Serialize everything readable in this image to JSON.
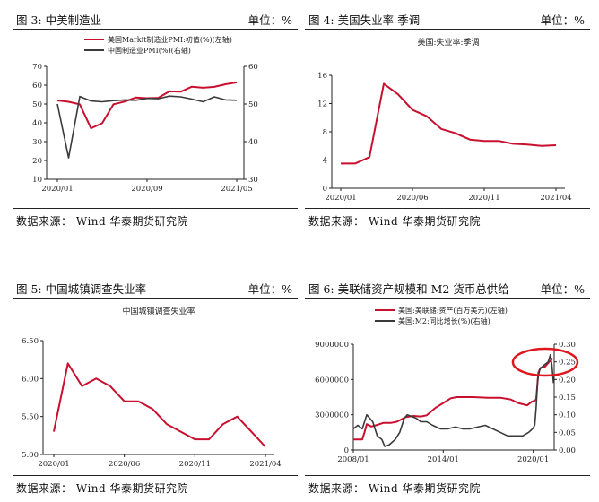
{
  "source_label": "数据来源：  Wind  华泰期货研究院",
  "unit_label": "单位：%",
  "colors": {
    "red": "#c8102e",
    "dark": "#3a3a3a",
    "annotation": "#e0161f"
  },
  "chart_data": [
    {
      "id": "fig3",
      "figure_label": "图 3:  中美制造业",
      "unit": "单位：%",
      "type": "line",
      "title": "",
      "dual_axis": true,
      "y_left": {
        "min": 10,
        "max": 70,
        "ticks": [
          10,
          20,
          30,
          40,
          50,
          60,
          70
        ]
      },
      "y_right": {
        "min": 30,
        "max": 60,
        "ticks": [
          30,
          40,
          50,
          60
        ]
      },
      "x_tick_labels": [
        "2020/01",
        "2020/09",
        "2021/05"
      ],
      "x_tick_index": [
        0,
        8,
        16
      ],
      "legend_position": "top",
      "series": [
        {
          "name": "美国Markit制造业PMI:初值(%)(左轴)",
          "axis": "left",
          "color": "#c8102e",
          "values": [
            51.9,
            51.2,
            49.8,
            37.1,
            39.8,
            49.8,
            51.3,
            53.5,
            53.1,
            53.3,
            56.7,
            56.5,
            59.2,
            58.6,
            59.1,
            60.5,
            61.5
          ]
        },
        {
          "name": "中国制造业PMI(%)(右轴)",
          "axis": "right",
          "color": "#3a3a3a",
          "values": [
            50.0,
            35.7,
            52.0,
            50.8,
            50.6,
            50.9,
            51.1,
            51.0,
            51.5,
            51.4,
            52.1,
            51.9,
            51.3,
            50.6,
            51.9,
            51.1,
            51.0
          ]
        }
      ]
    },
    {
      "id": "fig4",
      "figure_label": "图 4:  美国失业率 季调",
      "unit": "单位：%",
      "type": "line",
      "title": "美国:失业率:季调",
      "y_left": {
        "min": 0,
        "max": 16,
        "ticks": [
          0,
          4,
          8,
          12,
          16
        ]
      },
      "x_tick_labels": [
        "2020/01",
        "2020/06",
        "2020/11",
        "2021/04"
      ],
      "x_tick_index": [
        0,
        5,
        10,
        15
      ],
      "series": [
        {
          "name": "美国:失业率:季调",
          "axis": "left",
          "color": "#c8102e",
          "values": [
            3.5,
            3.5,
            4.4,
            14.8,
            13.3,
            11.1,
            10.2,
            8.4,
            7.8,
            6.9,
            6.7,
            6.7,
            6.3,
            6.2,
            6.0,
            6.1
          ]
        }
      ]
    },
    {
      "id": "fig5",
      "figure_label": "图 5:  中国城镇调查失业率",
      "unit": "单位：%",
      "type": "line",
      "title": "中国城镇调查失业率",
      "y_left": {
        "min": 5.0,
        "max": 6.5,
        "ticks": [
          5.0,
          5.5,
          6.0,
          6.5
        ],
        "tick_labels": [
          "5.00",
          "5.50",
          "6.00",
          "6.50"
        ]
      },
      "x_tick_labels": [
        "2020/01",
        "2020/06",
        "2020/11",
        "2021/04"
      ],
      "x_tick_index": [
        0,
        5,
        10,
        15
      ],
      "series": [
        {
          "name": "中国城镇调查失业率",
          "axis": "left",
          "color": "#c8102e",
          "values": [
            5.3,
            6.2,
            5.9,
            6.0,
            5.9,
            5.7,
            5.7,
            5.6,
            5.4,
            5.3,
            5.2,
            5.2,
            5.4,
            5.5,
            5.3,
            5.1
          ]
        }
      ]
    },
    {
      "id": "fig6",
      "figure_label": "图 6:  美联储资产规模和 M2 货币总供给",
      "unit": "单位：%",
      "type": "line",
      "title": "",
      "dual_axis": true,
      "y_left": {
        "min": 0,
        "max": 9000000,
        "ticks": [
          0,
          3000000,
          6000000,
          9000000
        ],
        "tick_labels": [
          "0",
          "3000000",
          "6000000",
          "9000000"
        ]
      },
      "y_right": {
        "min": 0,
        "max": 0.3,
        "ticks": [
          0,
          0.05,
          0.1,
          0.15,
          0.2,
          0.25,
          0.3
        ],
        "tick_labels": [
          "0.00",
          "0.05",
          "0.10",
          "0.15",
          "0.20",
          "0.25",
          "0.30"
        ]
      },
      "x_range": [
        2008.0,
        2021.4
      ],
      "x_tick_labels": [
        "2008/01",
        "2014/01",
        "2020/01"
      ],
      "x_tick_values": [
        2008.0,
        2014.0,
        2020.0
      ],
      "legend_position": "top",
      "annotation": "red ellipse around 2020-2021 surge",
      "series": [
        {
          "name": "美国:美联储:资产(百万美元)(左轴)",
          "axis": "left",
          "color": "#c8102e",
          "x": [
            2008.0,
            2008.6,
            2008.75,
            2008.9,
            2009.2,
            2009.5,
            2010.0,
            2010.5,
            2010.9,
            2011.5,
            2012.0,
            2012.5,
            2012.9,
            2013.5,
            2014.0,
            2014.5,
            2014.9,
            2015.5,
            2016.0,
            2017.0,
            2017.8,
            2018.5,
            2019.0,
            2019.6,
            2019.9,
            2020.1,
            2020.2,
            2020.35,
            2020.5,
            2020.8,
            2021.0,
            2021.3
          ],
          "y": [
            900000,
            900000,
            1500000,
            2200000,
            2000000,
            2100000,
            2300000,
            2300000,
            2400000,
            2800000,
            2900000,
            2850000,
            2950000,
            3600000,
            4000000,
            4400000,
            4500000,
            4500000,
            4500000,
            4450000,
            4450000,
            4300000,
            4000000,
            3800000,
            4100000,
            4200000,
            4300000,
            6600000,
            7000000,
            7100000,
            7400000,
            7800000
          ]
        },
        {
          "name": "美国:M2:同比增长(%)(右轴)",
          "axis": "right",
          "color": "#3a3a3a",
          "x": [
            2008.0,
            2008.3,
            2008.6,
            2008.9,
            2009.1,
            2009.3,
            2009.6,
            2009.9,
            2010.1,
            2010.4,
            2010.8,
            2011.1,
            2011.4,
            2011.6,
            2011.9,
            2012.2,
            2012.5,
            2012.9,
            2013.3,
            2013.8,
            2014.3,
            2014.8,
            2015.3,
            2015.8,
            2016.3,
            2016.8,
            2017.3,
            2017.8,
            2018.3,
            2018.8,
            2019.3,
            2019.7,
            2019.95,
            2020.1,
            2020.2,
            2020.3,
            2020.45,
            2020.7,
            2021.0,
            2021.15,
            2021.25,
            2021.35
          ],
          "y": [
            0.06,
            0.07,
            0.06,
            0.1,
            0.09,
            0.08,
            0.04,
            0.03,
            0.01,
            0.015,
            0.03,
            0.05,
            0.09,
            0.1,
            0.095,
            0.09,
            0.08,
            0.08,
            0.07,
            0.06,
            0.06,
            0.065,
            0.06,
            0.06,
            0.065,
            0.07,
            0.06,
            0.05,
            0.04,
            0.04,
            0.04,
            0.05,
            0.06,
            0.07,
            0.12,
            0.2,
            0.23,
            0.24,
            0.25,
            0.27,
            0.24,
            0.19
          ]
        }
      ]
    }
  ]
}
